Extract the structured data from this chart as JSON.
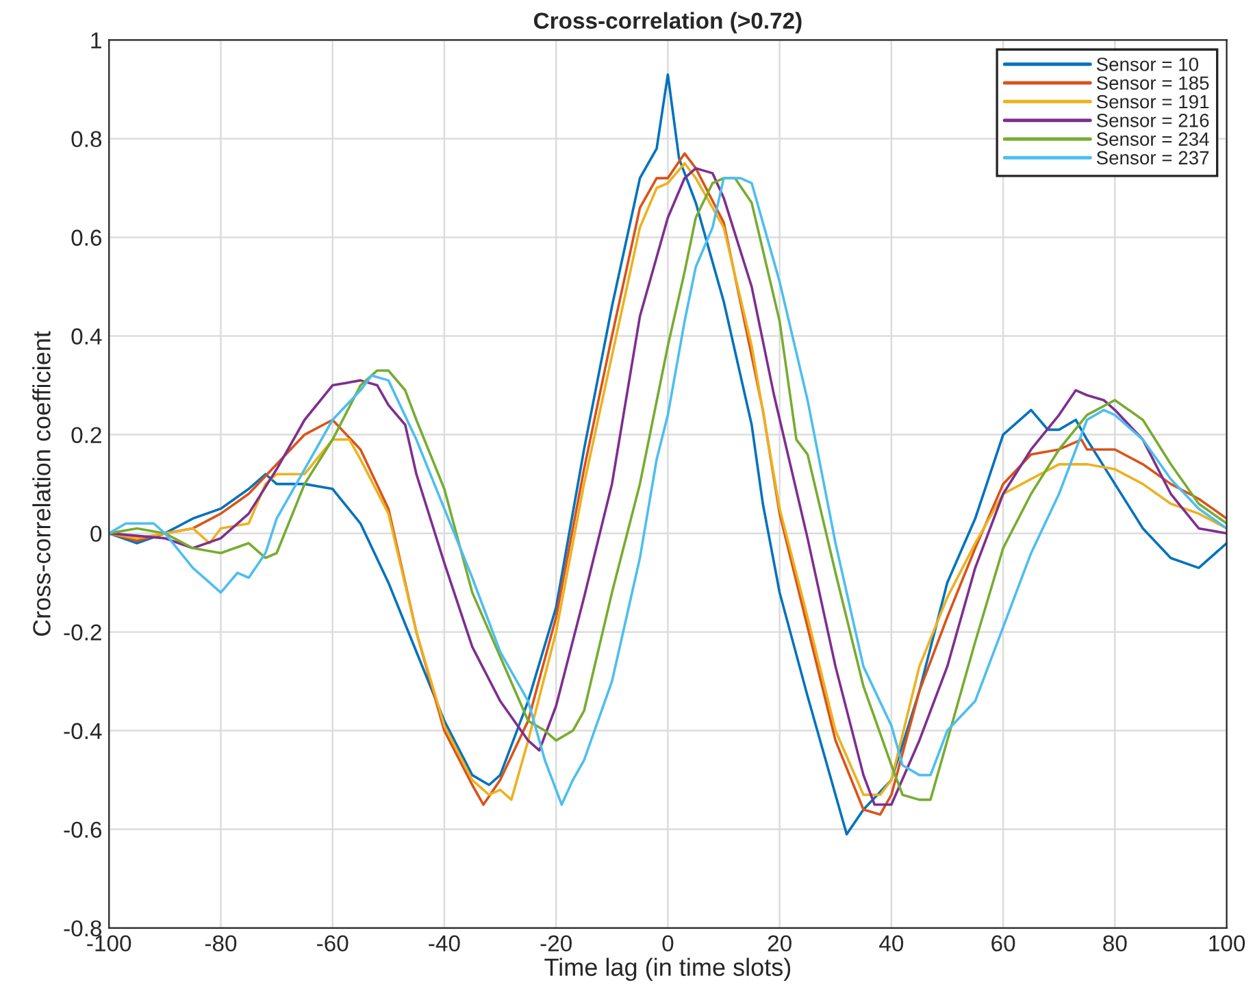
{
  "chart_data": {
    "type": "line",
    "title": "Cross-correlation (>0.72)",
    "xlabel": "Time lag (in time slots)",
    "ylabel": "Cross-correlation coefficient",
    "xlim": [
      -100,
      100
    ],
    "xticks": [
      -100,
      -80,
      -60,
      -40,
      -20,
      0,
      20,
      40,
      60,
      80,
      100
    ],
    "ylim": [
      -0.8,
      1
    ],
    "yticks": [
      -0.8,
      -0.6,
      -0.4,
      -0.2,
      0,
      0.2,
      0.4,
      0.6,
      0.8,
      1
    ],
    "grid": true,
    "legend": "top right",
    "line_style": "solid",
    "series": [
      {
        "name": "Sensor = 10",
        "color": "#0072bd",
        "x": [
          -100,
          -95,
          -90,
          -85,
          -80,
          -75,
          -72,
          -70,
          -65,
          -60,
          -55,
          -50,
          -45,
          -40,
          -35,
          -32,
          -30,
          -25,
          -20,
          -15,
          -10,
          -5,
          -2,
          0,
          2,
          5,
          10,
          15,
          17,
          20,
          25,
          30,
          32,
          35,
          40,
          45,
          50,
          55,
          60,
          65,
          68,
          70,
          73,
          75,
          80,
          85,
          90,
          95,
          100
        ],
        "values": [
          0,
          -0.02,
          0,
          0.03,
          0.05,
          0.09,
          0.12,
          0.1,
          0.1,
          0.09,
          0.02,
          -0.1,
          -0.24,
          -0.38,
          -0.49,
          -0.51,
          -0.49,
          -0.34,
          -0.15,
          0.17,
          0.46,
          0.72,
          0.78,
          0.93,
          0.76,
          0.67,
          0.47,
          0.22,
          0.06,
          -0.12,
          -0.33,
          -0.53,
          -0.61,
          -0.56,
          -0.5,
          -0.32,
          -0.1,
          0.03,
          0.2,
          0.25,
          0.21,
          0.21,
          0.23,
          0.19,
          0.1,
          0.01,
          -0.05,
          -0.07,
          -0.02
        ]
      },
      {
        "name": "Sensor = 185",
        "color": "#d95319",
        "x": [
          -100,
          -95,
          -90,
          -85,
          -80,
          -75,
          -70,
          -65,
          -60,
          -55,
          -50,
          -45,
          -40,
          -35,
          -33,
          -30,
          -25,
          -20,
          -15,
          -10,
          -5,
          -2,
          0,
          3,
          5,
          10,
          15,
          17,
          20,
          25,
          30,
          35,
          38,
          40,
          45,
          50,
          55,
          60,
          65,
          70,
          74,
          75,
          80,
          85,
          90,
          95,
          100
        ],
        "values": [
          0,
          -0.015,
          0,
          0.01,
          0.04,
          0.08,
          0.14,
          0.2,
          0.23,
          0.17,
          0.05,
          -0.2,
          -0.4,
          -0.51,
          -0.55,
          -0.5,
          -0.38,
          -0.17,
          0.13,
          0.4,
          0.66,
          0.72,
          0.72,
          0.77,
          0.74,
          0.63,
          0.36,
          0.25,
          0.04,
          -0.19,
          -0.42,
          -0.56,
          -0.57,
          -0.53,
          -0.32,
          -0.17,
          -0.03,
          0.1,
          0.16,
          0.17,
          0.19,
          0.17,
          0.17,
          0.14,
          0.1,
          0.07,
          0.03
        ]
      },
      {
        "name": "Sensor = 191",
        "color": "#edb120",
        "x": [
          -100,
          -95,
          -90,
          -85,
          -82,
          -80,
          -75,
          -72,
          -70,
          -65,
          -60,
          -57,
          -55,
          -50,
          -45,
          -40,
          -35,
          -32,
          -30,
          -28,
          -25,
          -20,
          -15,
          -10,
          -5,
          -2,
          0,
          3,
          5,
          10,
          15,
          20,
          25,
          30,
          35,
          38,
          40,
          45,
          50,
          55,
          60,
          65,
          70,
          75,
          80,
          85,
          90,
          95,
          100
        ],
        "values": [
          0,
          -0.01,
          0,
          0.01,
          -0.02,
          0.01,
          0.02,
          0.1,
          0.12,
          0.12,
          0.19,
          0.19,
          0.15,
          0.04,
          -0.2,
          -0.39,
          -0.5,
          -0.53,
          -0.52,
          -0.54,
          -0.42,
          -0.2,
          0.1,
          0.36,
          0.62,
          0.7,
          0.71,
          0.75,
          0.72,
          0.62,
          0.38,
          0.05,
          -0.17,
          -0.4,
          -0.53,
          -0.53,
          -0.5,
          -0.27,
          -0.13,
          -0.02,
          0.08,
          0.11,
          0.14,
          0.14,
          0.13,
          0.1,
          0.06,
          0.04,
          0.01
        ]
      },
      {
        "name": "Sensor = 216",
        "color": "#7e2f8e",
        "x": [
          -100,
          -90,
          -85,
          -80,
          -75,
          -70,
          -65,
          -60,
          -55,
          -52,
          -50,
          -47,
          -45,
          -40,
          -35,
          -30,
          -25,
          -23,
          -20,
          -15,
          -10,
          -5,
          0,
          3,
          5,
          8,
          10,
          15,
          19,
          25,
          30,
          35,
          37,
          40,
          45,
          50,
          55,
          60,
          65,
          70,
          73,
          75,
          78,
          80,
          85,
          90,
          95,
          100
        ],
        "values": [
          0,
          -0.01,
          -0.03,
          -0.01,
          0.04,
          0.13,
          0.23,
          0.3,
          0.31,
          0.3,
          0.26,
          0.22,
          0.12,
          -0.06,
          -0.23,
          -0.34,
          -0.42,
          -0.44,
          -0.35,
          -0.13,
          0.1,
          0.44,
          0.64,
          0.72,
          0.74,
          0.73,
          0.68,
          0.5,
          0.28,
          -0.01,
          -0.27,
          -0.49,
          -0.55,
          -0.55,
          -0.42,
          -0.27,
          -0.07,
          0.08,
          0.17,
          0.24,
          0.29,
          0.28,
          0.27,
          0.25,
          0.19,
          0.08,
          0.01,
          0
        ]
      },
      {
        "name": "Sensor = 234",
        "color": "#77ac30",
        "x": [
          -100,
          -95,
          -90,
          -85,
          -80,
          -75,
          -72,
          -70,
          -65,
          -60,
          -55,
          -52,
          -50,
          -47,
          -45,
          -40,
          -35,
          -30,
          -25,
          -22,
          -20,
          -17,
          -15,
          -10,
          -5,
          0,
          3,
          5,
          8,
          10,
          12,
          15,
          20,
          23,
          25,
          30,
          35,
          40,
          42,
          45,
          47,
          50,
          55,
          60,
          65,
          70,
          75,
          80,
          85,
          90,
          95,
          100
        ],
        "values": [
          0,
          0.01,
          0,
          -0.03,
          -0.04,
          -0.02,
          -0.05,
          -0.04,
          0.1,
          0.19,
          0.3,
          0.33,
          0.33,
          0.29,
          0.23,
          0.09,
          -0.12,
          -0.25,
          -0.38,
          -0.4,
          -0.42,
          -0.4,
          -0.36,
          -0.12,
          0.1,
          0.38,
          0.53,
          0.64,
          0.71,
          0.72,
          0.72,
          0.67,
          0.43,
          0.19,
          0.16,
          -0.08,
          -0.31,
          -0.47,
          -0.53,
          -0.54,
          -0.54,
          -0.42,
          -0.22,
          -0.03,
          0.08,
          0.17,
          0.24,
          0.27,
          0.23,
          0.14,
          0.06,
          0.02
        ]
      },
      {
        "name": "Sensor = 237",
        "color": "#4dbeee",
        "x": [
          -100,
          -97,
          -92,
          -90,
          -85,
          -82,
          -80,
          -77,
          -75,
          -72,
          -70,
          -65,
          -60,
          -55,
          -53,
          -50,
          -45,
          -40,
          -35,
          -30,
          -25,
          -22,
          -20,
          -19,
          -17,
          -15,
          -10,
          -5,
          -2,
          0,
          3,
          5,
          8,
          10,
          13,
          15,
          20,
          25,
          30,
          35,
          40,
          42,
          45,
          47,
          50,
          55,
          60,
          65,
          70,
          75,
          78,
          80,
          85,
          90,
          95,
          100
        ],
        "values": [
          0,
          0.02,
          0.02,
          0,
          -0.07,
          -0.1,
          -0.12,
          -0.08,
          -0.09,
          -0.04,
          0.03,
          0.13,
          0.23,
          0.29,
          0.32,
          0.31,
          0.19,
          0.05,
          -0.09,
          -0.24,
          -0.34,
          -0.46,
          -0.52,
          -0.55,
          -0.5,
          -0.46,
          -0.3,
          -0.05,
          0.15,
          0.24,
          0.43,
          0.54,
          0.62,
          0.72,
          0.72,
          0.71,
          0.51,
          0.27,
          -0.02,
          -0.27,
          -0.39,
          -0.47,
          -0.49,
          -0.49,
          -0.4,
          -0.34,
          -0.19,
          -0.04,
          0.08,
          0.23,
          0.25,
          0.24,
          0.19,
          0.11,
          0.05,
          0.01
        ]
      }
    ]
  }
}
